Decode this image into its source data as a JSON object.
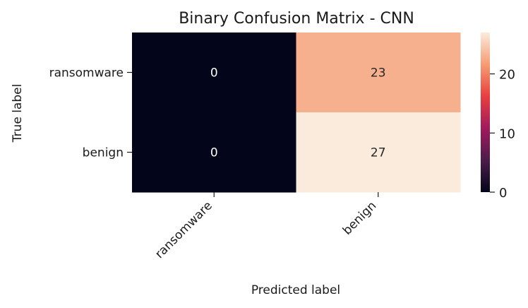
{
  "chart_data": {
    "type": "heatmap",
    "title": "Binary Confusion Matrix - CNN",
    "xlabel": "Predicted label",
    "ylabel": "True label",
    "x_categories": [
      "ransomware",
      "benign"
    ],
    "y_categories": [
      "ransomware",
      "benign"
    ],
    "values": [
      [
        0,
        23
      ],
      [
        0,
        27
      ]
    ],
    "colorbar": {
      "range": [
        0,
        27
      ],
      "ticks": [
        0,
        10,
        20
      ],
      "tick_labels": [
        "0",
        "10",
        "20"
      ]
    },
    "colormap": [
      "#03051a",
      "#4c1d4b",
      "#a11a5b",
      "#e83f3f",
      "#f69c73",
      "#faebdd"
    ]
  }
}
